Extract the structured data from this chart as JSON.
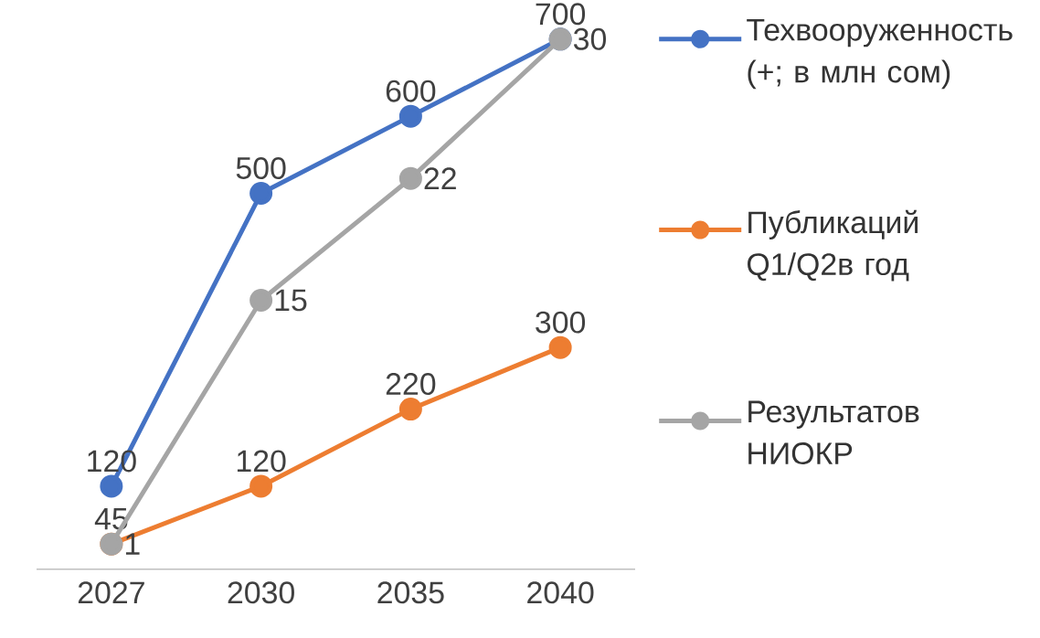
{
  "chart_data": {
    "type": "line",
    "categories": [
      "2027",
      "2030",
      "2035",
      "2040"
    ],
    "series": [
      {
        "name": "Техвооруженность (+; в млн сом)",
        "color": "#4472c4",
        "values": [
          120,
          500,
          600,
          700
        ]
      },
      {
        "name": "Публикаций Q1/Q2в год",
        "color": "#ed7d31",
        "values": [
          45,
          120,
          220,
          300
        ]
      },
      {
        "name": "Результатов НИОКР",
        "color": "#a5a5a5",
        "values": [
          1,
          15,
          22,
          30
        ],
        "axis": "y2"
      }
    ],
    "tick_labels": "x",
    "grid": false,
    "legend": "right",
    "marker": "circle",
    "line_style": "solid",
    "data_labels": true
  }
}
